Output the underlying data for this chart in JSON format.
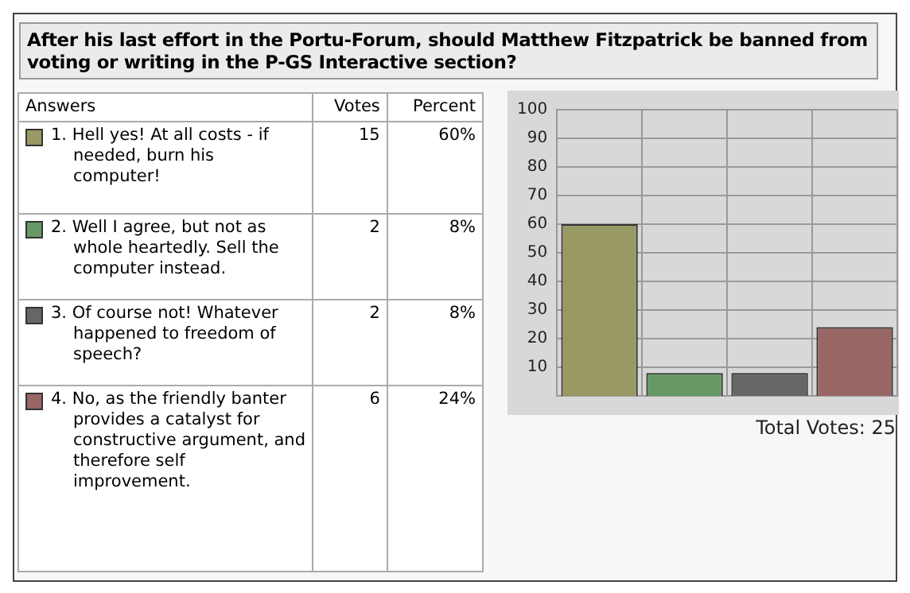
{
  "chart_data": [
    {
      "type": "other",
      "title": "After his last effort in the Portu-Forum, should Matthew Fitzpatrick be banned from voting or writing in the P-GS Interactive section?",
      "annotations": [
        "Answers",
        "Votes",
        "Percent",
        "1. Hell yes! At all costs - if needed, burn his computer!",
        "15",
        "60%",
        "2. Well I agree, but not as whole heartedly. Sell the computer instead.",
        "2",
        "8%",
        "3. Of course not! Whatever happened to freedom of speech?",
        "2",
        "8%",
        "4. No, as the friendly banter provides a catalyst for constructive argument, and therefore self improvement.",
        "6",
        "24%"
      ]
    },
    {
      "type": "bar",
      "categories": [
        null,
        null,
        null,
        null
      ],
      "values": [
        60,
        8,
        8,
        24
      ],
      "colors": [
        "#999966",
        "#669966",
        "#666666",
        "#996666"
      ],
      "ylim": [
        0,
        100
      ],
      "yticks": [
        10,
        20,
        30,
        40,
        50,
        60,
        70,
        80,
        90,
        100
      ],
      "grid": true,
      "annotations": [
        "Total Votes: 25"
      ]
    }
  ]
}
